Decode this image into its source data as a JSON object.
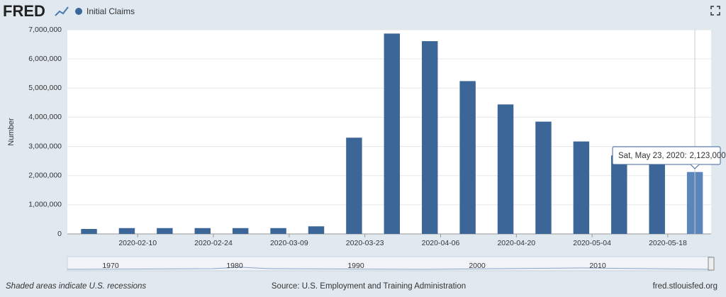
{
  "chart_data": {
    "type": "bar",
    "logo": "FRED",
    "y_label": "Number",
    "x": [
      "2020-02-01",
      "2020-02-08",
      "2020-02-15",
      "2020-02-22",
      "2020-02-29",
      "2020-03-07",
      "2020-03-14",
      "2020-03-21",
      "2020-03-28",
      "2020-04-04",
      "2020-04-11",
      "2020-04-18",
      "2020-04-25",
      "2020-05-02",
      "2020-05-09",
      "2020-05-16",
      "2020-05-23"
    ],
    "series": [
      {
        "name": "Initial Claims",
        "color": "#3c6598",
        "values": [
          170000,
          200000,
          200000,
          200000,
          200000,
          200000,
          260000,
          3300000,
          6870000,
          6610000,
          5240000,
          4440000,
          3850000,
          3170000,
          2690000,
          2450000,
          2123000
        ]
      }
    ],
    "highlight_color": "#5a86bb",
    "xlim": [
      "2020-01-28",
      "2020-05-26"
    ],
    "xticks": [
      "2020-02-10",
      "2020-02-24",
      "2020-03-09",
      "2020-03-23",
      "2020-04-06",
      "2020-04-20",
      "2020-05-04",
      "2020-05-18"
    ],
    "ylim": [
      0,
      7000000
    ],
    "yticks": [
      0,
      {
        "value": 1000000,
        "label": "1,000,000"
      },
      {
        "value": 2000000,
        "label": "2,000,000"
      },
      {
        "value": 3000000,
        "label": "3,000,000"
      },
      {
        "value": 4000000,
        "label": "4,000,000"
      },
      {
        "value": 5000000,
        "label": "5,000,000"
      },
      {
        "value": 6000000,
        "label": "6,000,000"
      },
      {
        "value": 7000000,
        "label": "7,000,000"
      }
    ],
    "grid": true,
    "tooltip": {
      "date": "Sat, May 23, 2020:",
      "value": "2,123,000"
    },
    "navigator_labels": [
      "1970",
      "1980",
      "1990",
      "2000",
      "2010"
    ],
    "footer": {
      "left": "Shaded areas indicate U.S. recessions",
      "center": "Source: U.S. Employment and Training Administration",
      "right": "fred.stlouisfed.org"
    }
  }
}
